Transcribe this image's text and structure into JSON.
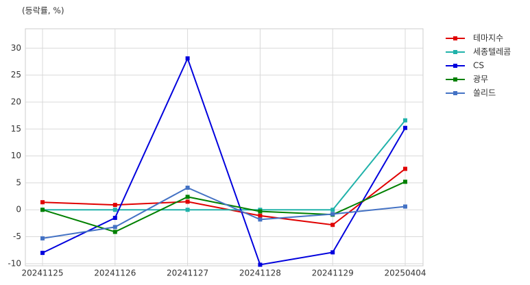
{
  "chart_data": {
    "type": "line",
    "y_label": "(등락률, %)",
    "categories": [
      "20241125",
      "20241126",
      "20241127",
      "20241128",
      "20241129",
      "20250404"
    ],
    "series": [
      {
        "name": "테마지수",
        "color": "#e00000",
        "values": [
          1.4,
          0.9,
          1.5,
          -1.1,
          -2.8,
          7.6
        ]
      },
      {
        "name": "세종텔레콤",
        "color": "#20b2aa",
        "values": [
          0,
          0,
          0,
          0,
          0,
          16.6
        ]
      },
      {
        "name": "CS",
        "color": "#0000dd",
        "values": [
          -8.0,
          -1.5,
          28.1,
          -10.2,
          -7.9,
          15.2
        ]
      },
      {
        "name": "광무",
        "color": "#008000",
        "values": [
          0,
          -4.1,
          2.4,
          -0.3,
          -0.9,
          5.2
        ]
      },
      {
        "name": "쏠리드",
        "color": "#4472c4",
        "values": [
          -5.3,
          -3.2,
          4.1,
          -1.8,
          -0.8,
          0.6
        ]
      }
    ],
    "ylim": [
      -10.4,
      33.6
    ],
    "yticks": [
      -10,
      -5,
      0,
      5,
      10,
      15,
      20,
      25,
      30
    ],
    "grid": true,
    "legend": "right"
  }
}
